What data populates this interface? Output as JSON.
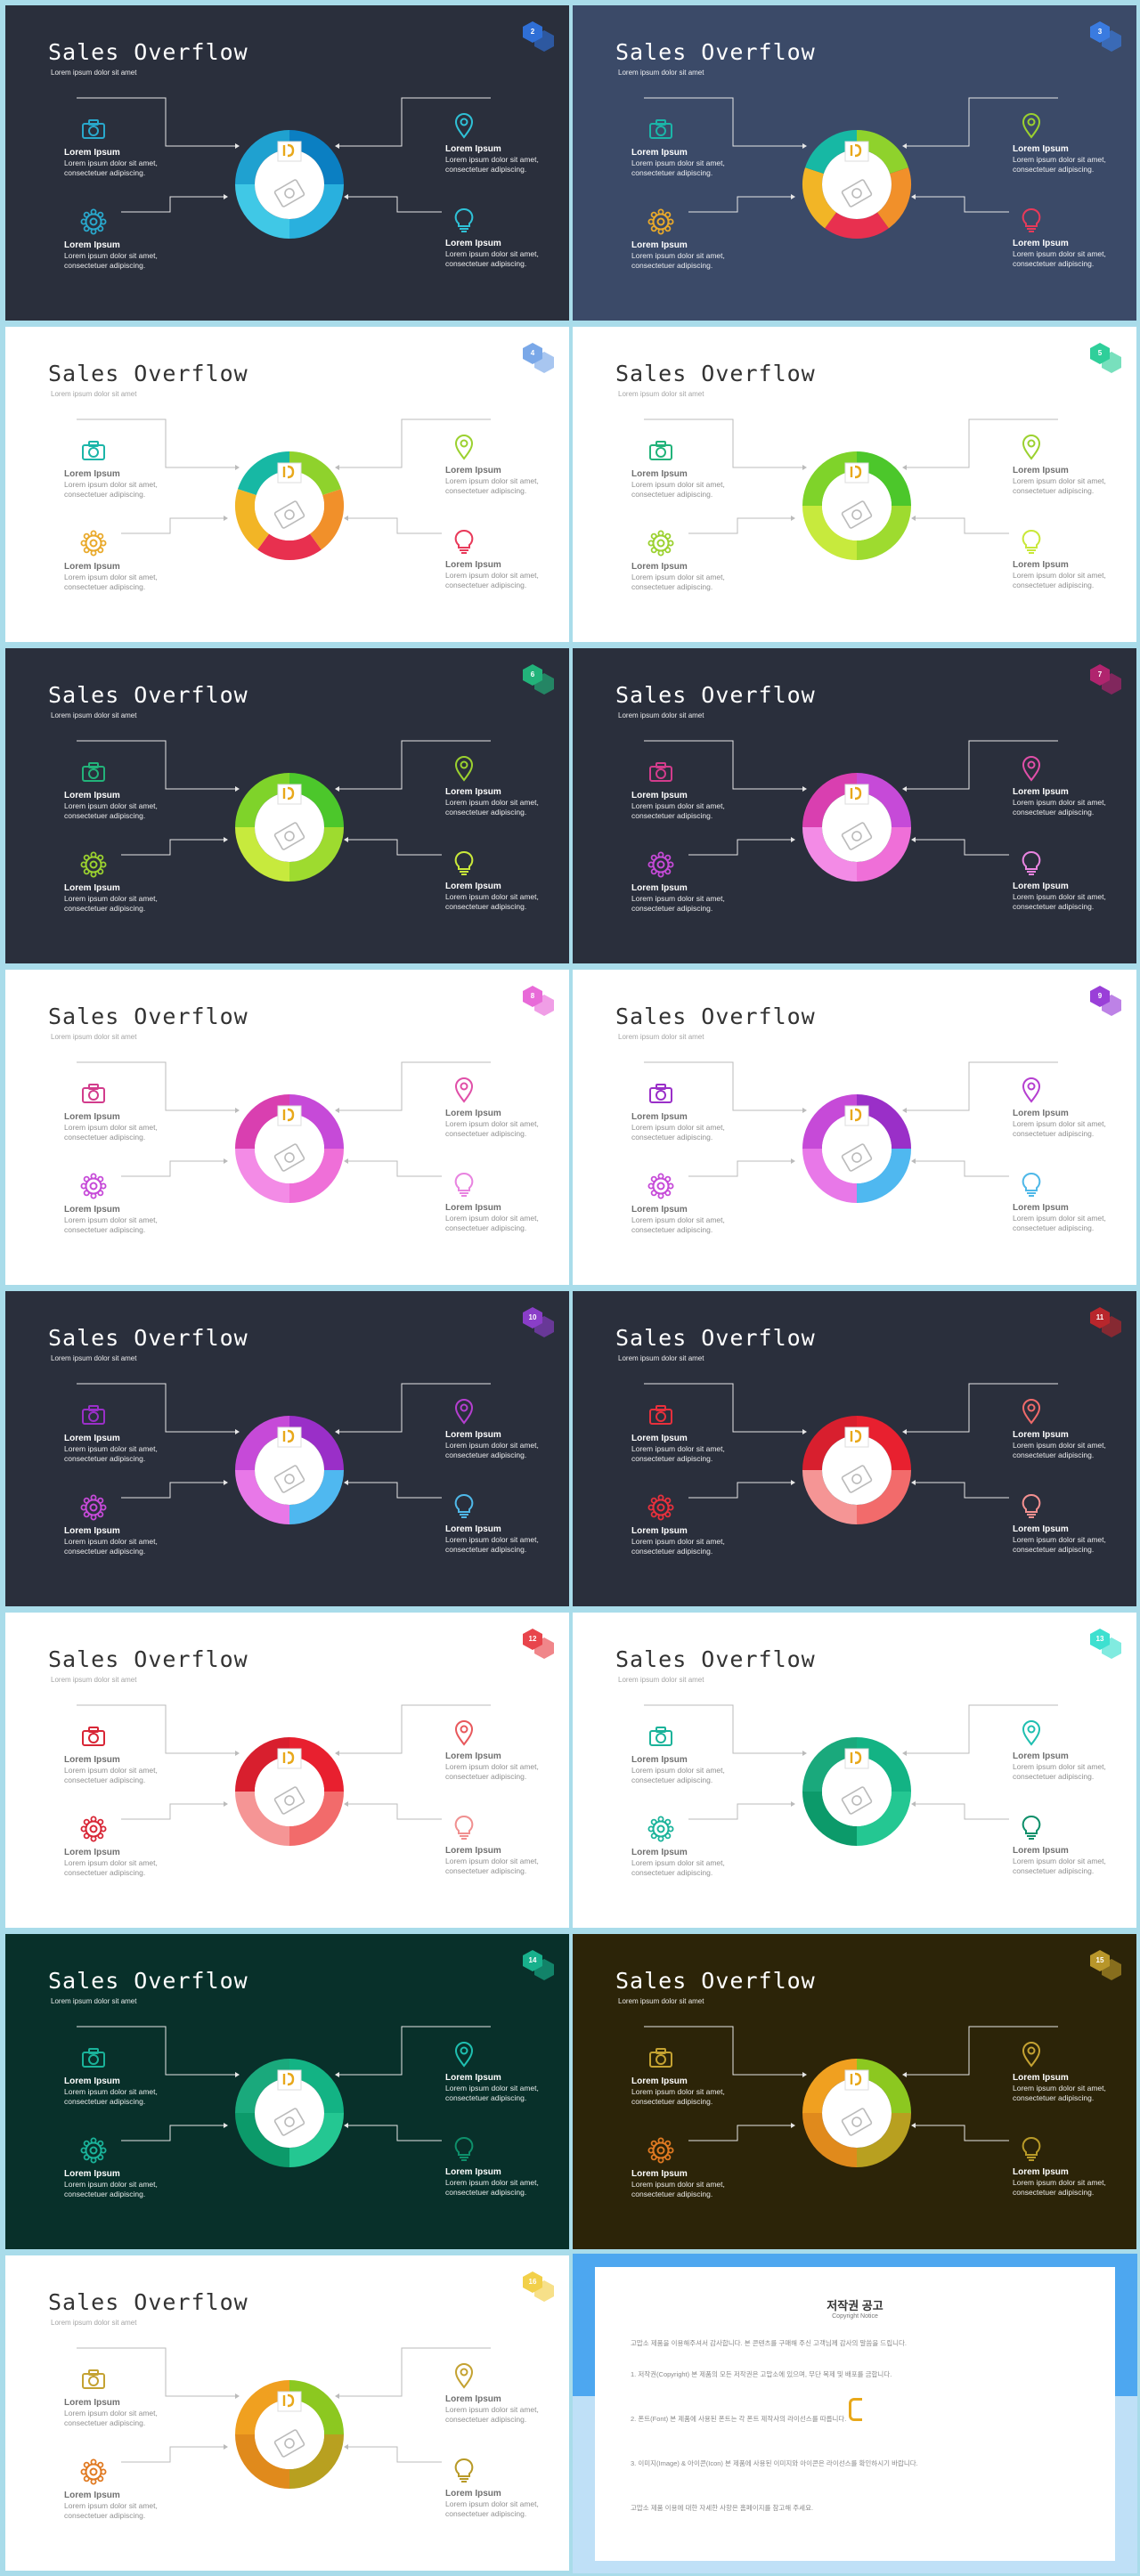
{
  "slides": [
    {
      "num": "2",
      "title": "Sales Overflow",
      "subtitle": "Lorem ipsum dolor sit amet",
      "bg": "#2a2f3c",
      "textColor": "#ffffff",
      "lineColor": "#e6e6e6",
      "hexColor": "#2f6fd6",
      "iconColors": [
        "#29a8cc",
        "#29a8cc",
        "#2fc1d6",
        "#2fc1d6"
      ],
      "segments": [
        "#0b7fc2",
        "#29b0de",
        "#40c8e6",
        "#1fa1d0"
      ],
      "items": [
        {
          "label": "Lorem Ipsum",
          "text": "Lorem ipsum dolor sit amet, consectetuer adipiscing."
        },
        {
          "label": "Lorem Ipsum",
          "text": "Lorem ipsum dolor sit amet, consectetuer adipiscing."
        },
        {
          "label": "Lorem Ipsum",
          "text": "Lorem ipsum dolor sit amet, consectetuer adipiscing."
        },
        {
          "label": "Lorem Ipsum",
          "text": "Lorem ipsum dolor sit amet, consectetuer adipiscing."
        }
      ]
    },
    {
      "num": "3",
      "title": "Sales Overflow",
      "subtitle": "Lorem ipsum dolor sit amet",
      "bg": "#3b4a68",
      "textColor": "#ffffff",
      "lineColor": "#e6e6e6",
      "hexColor": "#3a7be0",
      "iconColors": [
        "#1bb5a8",
        "#e9a92a",
        "#9bd12f",
        "#e83a5a"
      ],
      "segments": [
        "#8fd22c",
        "#f1902a",
        "#e8304f",
        "#f2b526",
        "#17b8a4"
      ],
      "items": [
        {
          "label": "Lorem Ipsum",
          "text": "Lorem ipsum dolor sit amet, consectetuer adipiscing."
        },
        {
          "label": "Lorem Ipsum",
          "text": "Lorem ipsum dolor sit amet, consectetuer adipiscing."
        },
        {
          "label": "Lorem Ipsum",
          "text": "Lorem ipsum dolor sit amet, consectetuer adipiscing."
        },
        {
          "label": "Lorem Ipsum",
          "text": "Lorem ipsum dolor sit amet, consectetuer adipiscing."
        }
      ]
    },
    {
      "num": "4",
      "title": "Sales Overflow",
      "subtitle": "Lorem ipsum dolor sit amet",
      "bg": "#ffffff",
      "textColor": "#333333",
      "lineColor": "#bbbbbb",
      "hexColor": "#7aa8e8",
      "iconColors": [
        "#1bb5a8",
        "#e9a92a",
        "#9bd12f",
        "#e83a5a"
      ],
      "segments": [
        "#8fd22c",
        "#f1902a",
        "#e8304f",
        "#f2b526",
        "#17b8a4"
      ],
      "items": [
        {
          "label": "Lorem Ipsum",
          "text": "Lorem ipsum dolor sit amet, consectetuer adipiscing."
        },
        {
          "label": "Lorem Ipsum",
          "text": "Lorem ipsum dolor sit amet, consectetuer adipiscing."
        },
        {
          "label": "Lorem Ipsum",
          "text": "Lorem ipsum dolor sit amet, consectetuer adipiscing."
        },
        {
          "label": "Lorem Ipsum",
          "text": "Lorem ipsum dolor sit amet, consectetuer adipiscing."
        }
      ]
    },
    {
      "num": "5",
      "title": "Sales Overflow",
      "subtitle": "Lorem ipsum dolor sit amet",
      "bg": "#ffffff",
      "textColor": "#333333",
      "lineColor": "#bbbbbb",
      "hexColor": "#2fcf9a",
      "iconColors": [
        "#22b37a",
        "#9bd12f",
        "#9bd12f",
        "#c9e83a"
      ],
      "segments": [
        "#4cc72b",
        "#9edb2f",
        "#c7ea3d",
        "#7fd32a"
      ],
      "items": [
        {
          "label": "Lorem Ipsum",
          "text": "Lorem ipsum dolor sit amet, consectetuer adipiscing."
        },
        {
          "label": "Lorem Ipsum",
          "text": "Lorem ipsum dolor sit amet, consectetuer adipiscing."
        },
        {
          "label": "Lorem Ipsum",
          "text": "Lorem ipsum dolor sit amet, consectetuer adipiscing."
        },
        {
          "label": "Lorem Ipsum",
          "text": "Lorem ipsum dolor sit amet, consectetuer adipiscing."
        }
      ]
    },
    {
      "num": "6",
      "title": "Sales Overflow",
      "subtitle": "Lorem ipsum dolor sit amet",
      "bg": "#2a2f3c",
      "textColor": "#ffffff",
      "lineColor": "#e6e6e6",
      "hexColor": "#22b37a",
      "iconColors": [
        "#22b37a",
        "#9bd12f",
        "#9bd12f",
        "#c9e83a"
      ],
      "segments": [
        "#4cc72b",
        "#9edb2f",
        "#c7ea3d",
        "#7fd32a"
      ],
      "items": [
        {
          "label": "Lorem Ipsum",
          "text": "Lorem ipsum dolor sit amet, consectetuer adipiscing."
        },
        {
          "label": "Lorem Ipsum",
          "text": "Lorem ipsum dolor sit amet, consectetuer adipiscing."
        },
        {
          "label": "Lorem Ipsum",
          "text": "Lorem ipsum dolor sit amet, consectetuer adipiscing."
        },
        {
          "label": "Lorem Ipsum",
          "text": "Lorem ipsum dolor sit amet, consectetuer adipiscing."
        }
      ]
    },
    {
      "num": "7",
      "title": "Sales Overflow",
      "subtitle": "Lorem ipsum dolor sit amet",
      "bg": "#2a2f3c",
      "textColor": "#ffffff",
      "lineColor": "#e6e6e6",
      "hexColor": "#b0246e",
      "iconColors": [
        "#d23c8c",
        "#c64ad8",
        "#e04fa8",
        "#e884e0"
      ],
      "segments": [
        "#c64ad8",
        "#ef6fd8",
        "#f38be6",
        "#d93fb0"
      ],
      "items": [
        {
          "label": "Lorem Ipsum",
          "text": "Lorem ipsum dolor sit amet, consectetuer adipiscing."
        },
        {
          "label": "Lorem Ipsum",
          "text": "Lorem ipsum dolor sit amet, consectetuer adipiscing."
        },
        {
          "label": "Lorem Ipsum",
          "text": "Lorem ipsum dolor sit amet, consectetuer adipiscing."
        },
        {
          "label": "Lorem Ipsum",
          "text": "Lorem ipsum dolor sit amet, consectetuer adipiscing."
        }
      ]
    },
    {
      "num": "8",
      "title": "Sales Overflow",
      "subtitle": "Lorem ipsum dolor sit amet",
      "bg": "#ffffff",
      "textColor": "#333333",
      "lineColor": "#bbbbbb",
      "hexColor": "#e86ad8",
      "iconColors": [
        "#d23c8c",
        "#c64ad8",
        "#e04fa8",
        "#e884e0"
      ],
      "segments": [
        "#c64ad8",
        "#ef6fd8",
        "#f38be6",
        "#d93fb0"
      ],
      "items": [
        {
          "label": "Lorem Ipsum",
          "text": "Lorem ipsum dolor sit amet, consectetuer adipiscing."
        },
        {
          "label": "Lorem Ipsum",
          "text": "Lorem ipsum dolor sit amet, consectetuer adipiscing."
        },
        {
          "label": "Lorem Ipsum",
          "text": "Lorem ipsum dolor sit amet, consectetuer adipiscing."
        },
        {
          "label": "Lorem Ipsum",
          "text": "Lorem ipsum dolor sit amet, consectetuer adipiscing."
        }
      ]
    },
    {
      "num": "9",
      "title": "Sales Overflow",
      "subtitle": "Lorem ipsum dolor sit amet",
      "bg": "#ffffff",
      "textColor": "#333333",
      "lineColor": "#bbbbbb",
      "hexColor": "#9a3fd8",
      "iconColors": [
        "#9a2fc8",
        "#c64ad8",
        "#b53fd0",
        "#4fb8e8"
      ],
      "segments": [
        "#9a2fc8",
        "#4fb8f0",
        "#e878e8",
        "#c64ad8"
      ],
      "items": [
        {
          "label": "Lorem Ipsum",
          "text": "Lorem ipsum dolor sit amet, consectetuer adipiscing."
        },
        {
          "label": "Lorem Ipsum",
          "text": "Lorem ipsum dolor sit amet, consectetuer adipiscing."
        },
        {
          "label": "Lorem Ipsum",
          "text": "Lorem ipsum dolor sit amet, consectetuer adipiscing."
        },
        {
          "label": "Lorem Ipsum",
          "text": "Lorem ipsum dolor sit amet, consectetuer adipiscing."
        }
      ]
    },
    {
      "num": "10",
      "title": "Sales Overflow",
      "subtitle": "Lorem ipsum dolor sit amet",
      "bg": "#2a2f3c",
      "textColor": "#ffffff",
      "lineColor": "#e6e6e6",
      "hexColor": "#8a3ec8",
      "iconColors": [
        "#9a2fc8",
        "#c64ad8",
        "#b53fd0",
        "#4fb8e8"
      ],
      "segments": [
        "#9a2fc8",
        "#4fb8f0",
        "#e878e8",
        "#c64ad8"
      ],
      "items": [
        {
          "label": "Lorem Ipsum",
          "text": "Lorem ipsum dolor sit amet, consectetuer adipiscing."
        },
        {
          "label": "Lorem Ipsum",
          "text": "Lorem ipsum dolor sit amet, consectetuer adipiscing."
        },
        {
          "label": "Lorem Ipsum",
          "text": "Lorem ipsum dolor sit amet, consectetuer adipiscing."
        },
        {
          "label": "Lorem Ipsum",
          "text": "Lorem ipsum dolor sit amet, consectetuer adipiscing."
        }
      ]
    },
    {
      "num": "11",
      "title": "Sales Overflow",
      "subtitle": "Lorem ipsum dolor sit amet",
      "bg": "#2a2f3c",
      "textColor": "#ffffff",
      "lineColor": "#e6e6e6",
      "hexColor": "#b8262c",
      "iconColors": [
        "#e8303c",
        "#e8303c",
        "#f06a6a",
        "#f39090"
      ],
      "segments": [
        "#e8202f",
        "#f26b6b",
        "#f59595",
        "#d81f2e"
      ],
      "items": [
        {
          "label": "Lorem Ipsum",
          "text": "Lorem ipsum dolor sit amet, consectetuer adipiscing."
        },
        {
          "label": "Lorem Ipsum",
          "text": "Lorem ipsum dolor sit amet, consectetuer adipiscing."
        },
        {
          "label": "Lorem Ipsum",
          "text": "Lorem ipsum dolor sit amet, consectetuer adipiscing."
        },
        {
          "label": "Lorem Ipsum",
          "text": "Lorem ipsum dolor sit amet, consectetuer adipiscing."
        }
      ]
    },
    {
      "num": "12",
      "title": "Sales Overflow",
      "subtitle": "Lorem ipsum dolor sit amet",
      "bg": "#ffffff",
      "textColor": "#333333",
      "lineColor": "#bbbbbb",
      "hexColor": "#e8454c",
      "iconColors": [
        "#d82636",
        "#d82636",
        "#e8585c",
        "#f09090"
      ],
      "segments": [
        "#e8202f",
        "#f26b6b",
        "#f59595",
        "#d81f2e"
      ],
      "items": [
        {
          "label": "Lorem Ipsum",
          "text": "Lorem ipsum dolor sit amet, consectetuer adipiscing."
        },
        {
          "label": "Lorem Ipsum",
          "text": "Lorem ipsum dolor sit amet, consectetuer adipiscing."
        },
        {
          "label": "Lorem Ipsum",
          "text": "Lorem ipsum dolor sit amet, consectetuer adipiscing."
        },
        {
          "label": "Lorem Ipsum",
          "text": "Lorem ipsum dolor sit amet, consectetuer adipiscing."
        }
      ]
    },
    {
      "num": "13",
      "title": "Sales Overflow",
      "subtitle": "Lorem ipsum dolor sit amet",
      "bg": "#ffffff",
      "textColor": "#333333",
      "lineColor": "#bbbbbb",
      "hexColor": "#3ee0d0",
      "iconColors": [
        "#1ab39a",
        "#1ab39a",
        "#1fbfb0",
        "#0e8f6a"
      ],
      "segments": [
        "#13b384",
        "#24c792",
        "#0c9a6a",
        "#1aa97c"
      ],
      "items": [
        {
          "label": "Lorem Ipsum",
          "text": "Lorem ipsum dolor sit amet, consectetuer adipiscing."
        },
        {
          "label": "Lorem Ipsum",
          "text": "Lorem ipsum dolor sit amet, consectetuer adipiscing."
        },
        {
          "label": "Lorem Ipsum",
          "text": "Lorem ipsum dolor sit amet, consectetuer adipiscing."
        },
        {
          "label": "Lorem Ipsum",
          "text": "Lorem ipsum dolor sit amet, consectetuer adipiscing."
        }
      ]
    },
    {
      "num": "14",
      "title": "Sales Overflow",
      "subtitle": "Lorem ipsum dolor sit amet",
      "bg": "#08302a",
      "textColor": "#ffffff",
      "lineColor": "#e6e6e6",
      "hexColor": "#18b08c",
      "iconColors": [
        "#1ab39a",
        "#1ab39a",
        "#1fbfb0",
        "#0e8f6a"
      ],
      "segments": [
        "#13b384",
        "#24c792",
        "#0c9a6a",
        "#1aa97c"
      ],
      "items": [
        {
          "label": "Lorem Ipsum",
          "text": "Lorem ipsum dolor sit amet, consectetuer adipiscing."
        },
        {
          "label": "Lorem Ipsum",
          "text": "Lorem ipsum dolor sit amet, consectetuer adipiscing."
        },
        {
          "label": "Lorem Ipsum",
          "text": "Lorem ipsum dolor sit amet, consectetuer adipiscing."
        },
        {
          "label": "Lorem Ipsum",
          "text": "Lorem ipsum dolor sit amet, consectetuer adipiscing."
        }
      ]
    },
    {
      "num": "15",
      "title": "Sales Overflow",
      "subtitle": "Lorem ipsum dolor sit amet",
      "bg": "#2c2408",
      "textColor": "#ffffff",
      "lineColor": "#e6e6e6",
      "hexColor": "#b8962a",
      "iconColors": [
        "#c4a232",
        "#e07a22",
        "#c4a232",
        "#b89a28"
      ],
      "segments": [
        "#8cc820",
        "#b8a020",
        "#e08a1c",
        "#f0a020"
      ],
      "items": [
        {
          "label": "Lorem Ipsum",
          "text": "Lorem ipsum dolor sit amet, consectetuer adipiscing."
        },
        {
          "label": "Lorem Ipsum",
          "text": "Lorem ipsum dolor sit amet, consectetuer adipiscing."
        },
        {
          "label": "Lorem Ipsum",
          "text": "Lorem ipsum dolor sit amet, consectetuer adipiscing."
        },
        {
          "label": "Lorem Ipsum",
          "text": "Lorem ipsum dolor sit amet, consectetuer adipiscing."
        }
      ]
    },
    {
      "num": "16",
      "title": "Sales Overflow",
      "subtitle": "Lorem ipsum dolor sit amet",
      "bg": "#ffffff",
      "textColor": "#333333",
      "lineColor": "#bbbbbb",
      "hexColor": "#f2d04a",
      "iconColors": [
        "#c4a232",
        "#e07a22",
        "#c4a232",
        "#b89a28"
      ],
      "segments": [
        "#8cc820",
        "#b8a020",
        "#e08a1c",
        "#f0a020"
      ],
      "items": [
        {
          "label": "Lorem Ipsum",
          "text": "Lorem ipsum dolor sit amet, consectetuer adipiscing."
        },
        {
          "label": "Lorem Ipsum",
          "text": "Lorem ipsum dolor sit amet, consectetuer adipiscing."
        },
        {
          "label": "Lorem Ipsum",
          "text": "Lorem ipsum dolor sit amet, consectetuer adipiscing."
        },
        {
          "label": "Lorem Ipsum",
          "text": "Lorem ipsum dolor sit amet, consectetuer adipiscing."
        }
      ]
    }
  ],
  "copyright": {
    "title": "저작권 공고",
    "subtitle": "Copyright Notice",
    "paragraphs": [
      "고맙소 제품을 이용해주셔서 감사합니다. 본 콘텐츠를 구매해 주신 고객님께 감사의 말씀을 드립니다.",
      "1. 저작권(Copyright) 본 제품의 모든 저작권은 고맙소에 있으며, 무단 복제 및 배포를 금합니다.",
      "2. 폰트(Font) 본 제품에 사용된 폰트는 각 폰트 제작사의 라이선스를 따릅니다.",
      "3. 이미지(Image) & 아이콘(Icon) 본 제품에 사용된 이미지와 아이콘은 라이선스를 확인하시기 바랍니다.",
      "고맙소 제품 이용에 대한 자세한 사항은 홈페이지를 참고해 주세요."
    ]
  }
}
